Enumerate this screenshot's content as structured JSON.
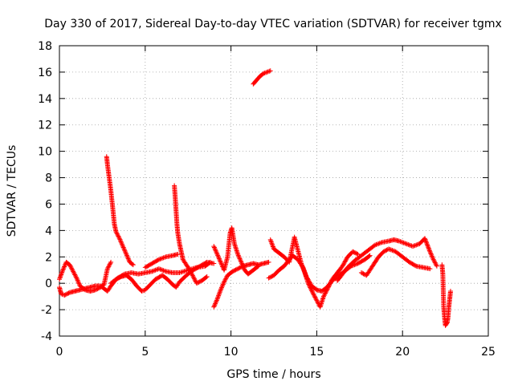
{
  "chart_data": {
    "type": "scatter",
    "title": "Day 330 of 2017, Sidereal Day-to-day VTEC variation (SDTVAR) for receiver tgmx",
    "xlabel": "GPS time / hours",
    "ylabel": "SDTVAR / TECUs",
    "xlim": [
      0,
      25
    ],
    "ylim": [
      -4,
      18
    ],
    "xticks": [
      0,
      5,
      10,
      15,
      20,
      25
    ],
    "yticks": [
      -4,
      -2,
      0,
      2,
      4,
      6,
      8,
      10,
      12,
      14,
      16,
      18
    ],
    "grid": true,
    "legend": "none",
    "marker": "+",
    "color": "#ff0000",
    "series": [
      {
        "name": "trace-a",
        "points": [
          [
            0.0,
            -0.3
          ],
          [
            0.1,
            -0.8
          ],
          [
            0.3,
            -0.9
          ],
          [
            0.6,
            -0.7
          ],
          [
            0.9,
            -0.6
          ],
          [
            1.2,
            -0.5
          ],
          [
            1.5,
            -0.4
          ],
          [
            1.8,
            -0.3
          ],
          [
            2.1,
            -0.2
          ],
          [
            2.4,
            -0.2
          ],
          [
            2.6,
            -0.4
          ],
          [
            2.8,
            -0.6
          ],
          [
            3.0,
            -0.2
          ],
          [
            3.3,
            0.3
          ],
          [
            3.6,
            0.5
          ],
          [
            3.9,
            0.6
          ],
          [
            4.2,
            0.3
          ],
          [
            4.5,
            -0.2
          ],
          [
            4.8,
            -0.6
          ],
          [
            5.0,
            -0.5
          ],
          [
            5.3,
            -0.1
          ],
          [
            5.6,
            0.3
          ],
          [
            6.0,
            0.6
          ],
          [
            6.3,
            0.3
          ],
          [
            6.6,
            -0.1
          ],
          [
            6.8,
            -0.3
          ],
          [
            7.0,
            0.1
          ],
          [
            7.4,
            0.6
          ],
          [
            7.8,
            1.0
          ],
          [
            8.2,
            1.3
          ],
          [
            8.6,
            1.6
          ],
          [
            9.0,
            1.5
          ]
        ]
      },
      {
        "name": "trace-b",
        "points": [
          [
            0.0,
            0.3
          ],
          [
            0.2,
            1.0
          ],
          [
            0.4,
            1.6
          ],
          [
            0.6,
            1.4
          ],
          [
            0.8,
            0.9
          ],
          [
            1.0,
            0.4
          ],
          [
            1.2,
            -0.2
          ],
          [
            1.5,
            -0.5
          ],
          [
            1.8,
            -0.6
          ],
          [
            2.1,
            -0.5
          ],
          [
            2.4,
            -0.3
          ],
          [
            2.6,
            -0.1
          ],
          [
            2.8,
            1.1
          ],
          [
            3.0,
            1.6
          ]
        ]
      },
      {
        "name": "trace-c",
        "points": [
          [
            2.75,
            9.6
          ],
          [
            2.8,
            9.0
          ],
          [
            2.9,
            8.0
          ],
          [
            3.0,
            7.0
          ],
          [
            3.1,
            5.8
          ],
          [
            3.2,
            4.5
          ],
          [
            3.3,
            3.9
          ],
          [
            3.5,
            3.4
          ],
          [
            3.7,
            2.8
          ],
          [
            3.9,
            2.2
          ],
          [
            4.1,
            1.6
          ],
          [
            4.3,
            1.4
          ]
        ]
      },
      {
        "name": "trace-d",
        "points": [
          [
            3.0,
            0.0
          ],
          [
            3.4,
            0.4
          ],
          [
            3.8,
            0.7
          ],
          [
            4.2,
            0.8
          ],
          [
            4.6,
            0.7
          ],
          [
            5.0,
            0.8
          ],
          [
            5.4,
            0.9
          ],
          [
            5.8,
            1.1
          ],
          [
            6.2,
            0.9
          ],
          [
            6.6,
            0.8
          ],
          [
            7.0,
            0.8
          ],
          [
            7.5,
            1.0
          ],
          [
            8.0,
            1.2
          ],
          [
            8.5,
            1.3
          ],
          [
            8.8,
            1.6
          ]
        ]
      },
      {
        "name": "trace-e",
        "points": [
          [
            6.7,
            7.4
          ],
          [
            6.75,
            6.5
          ],
          [
            6.8,
            5.5
          ],
          [
            6.85,
            4.5
          ],
          [
            6.9,
            3.8
          ],
          [
            7.0,
            3.0
          ],
          [
            7.1,
            2.4
          ],
          [
            7.2,
            1.8
          ],
          [
            7.4,
            1.4
          ],
          [
            7.6,
            1.0
          ],
          [
            7.8,
            0.5
          ],
          [
            8.0,
            0.0
          ],
          [
            8.3,
            0.2
          ],
          [
            8.6,
            0.5
          ]
        ]
      },
      {
        "name": "trace-f",
        "points": [
          [
            5.0,
            1.2
          ],
          [
            5.4,
            1.5
          ],
          [
            5.8,
            1.8
          ],
          [
            6.2,
            2.0
          ],
          [
            6.6,
            2.1
          ],
          [
            6.9,
            2.2
          ]
        ]
      },
      {
        "name": "trace-g",
        "points": [
          [
            9.0,
            -1.8
          ],
          [
            9.2,
            -1.2
          ],
          [
            9.4,
            -0.5
          ],
          [
            9.6,
            0.1
          ],
          [
            9.8,
            0.6
          ],
          [
            10.1,
            0.9
          ],
          [
            10.4,
            1.1
          ],
          [
            10.7,
            1.3
          ],
          [
            11.0,
            1.4
          ],
          [
            11.3,
            1.5
          ],
          [
            11.6,
            1.4
          ],
          [
            11.9,
            1.5
          ],
          [
            12.2,
            1.6
          ]
        ]
      },
      {
        "name": "trace-h",
        "points": [
          [
            9.0,
            2.8
          ],
          [
            9.2,
            2.2
          ],
          [
            9.4,
            1.6
          ],
          [
            9.6,
            1.0
          ],
          [
            9.8,
            2.0
          ],
          [
            9.95,
            3.8
          ],
          [
            10.05,
            4.2
          ],
          [
            10.2,
            3.0
          ],
          [
            10.4,
            2.2
          ],
          [
            10.6,
            1.6
          ],
          [
            10.8,
            1.0
          ],
          [
            11.0,
            0.7
          ],
          [
            11.3,
            1.0
          ],
          [
            11.6,
            1.3
          ]
        ]
      },
      {
        "name": "trace-i",
        "points": [
          [
            11.3,
            15.1
          ],
          [
            11.5,
            15.4
          ],
          [
            11.7,
            15.7
          ],
          [
            11.9,
            15.9
          ],
          [
            12.1,
            16.0
          ],
          [
            12.3,
            16.1
          ]
        ]
      },
      {
        "name": "trace-j",
        "points": [
          [
            12.3,
            3.3
          ],
          [
            12.5,
            2.6
          ],
          [
            12.8,
            2.3
          ],
          [
            13.1,
            2.0
          ],
          [
            13.4,
            1.6
          ],
          [
            13.7,
            3.5
          ],
          [
            13.9,
            2.5
          ],
          [
            14.1,
            1.5
          ],
          [
            14.3,
            0.8
          ],
          [
            14.5,
            0.0
          ],
          [
            14.8,
            -0.8
          ],
          [
            15.0,
            -1.3
          ],
          [
            15.2,
            -1.8
          ],
          [
            15.4,
            -1.0
          ],
          [
            15.6,
            -0.5
          ],
          [
            15.9,
            0.3
          ],
          [
            16.2,
            0.8
          ],
          [
            16.5,
            1.3
          ],
          [
            16.8,
            2.0
          ],
          [
            17.1,
            2.4
          ],
          [
            17.4,
            2.2
          ]
        ]
      },
      {
        "name": "trace-k",
        "points": [
          [
            12.2,
            0.4
          ],
          [
            12.5,
            0.6
          ],
          [
            12.8,
            1.0
          ],
          [
            13.1,
            1.3
          ],
          [
            13.4,
            1.8
          ],
          [
            13.6,
            2.1
          ],
          [
            13.9,
            1.8
          ],
          [
            14.2,
            1.2
          ],
          [
            14.4,
            0.5
          ],
          [
            14.7,
            -0.2
          ],
          [
            15.0,
            -0.5
          ],
          [
            15.3,
            -0.6
          ],
          [
            15.6,
            -0.3
          ],
          [
            15.9,
            0.2
          ],
          [
            16.3,
            0.6
          ],
          [
            16.7,
            1.0
          ],
          [
            17.0,
            1.3
          ],
          [
            17.4,
            1.5
          ],
          [
            17.8,
            1.8
          ],
          [
            18.1,
            2.1
          ]
        ]
      },
      {
        "name": "trace-l",
        "points": [
          [
            16.2,
            0.2
          ],
          [
            16.5,
            0.7
          ],
          [
            16.8,
            1.2
          ],
          [
            17.2,
            1.7
          ],
          [
            17.6,
            2.1
          ],
          [
            18.0,
            2.5
          ],
          [
            18.4,
            2.9
          ],
          [
            18.8,
            3.1
          ],
          [
            19.2,
            3.2
          ],
          [
            19.5,
            3.3
          ],
          [
            19.8,
            3.2
          ],
          [
            20.2,
            3.0
          ],
          [
            20.6,
            2.8
          ],
          [
            21.0,
            3.0
          ],
          [
            21.3,
            3.4
          ],
          [
            21.6,
            2.4
          ],
          [
            21.8,
            1.8
          ],
          [
            22.0,
            1.3
          ]
        ]
      },
      {
        "name": "trace-m",
        "points": [
          [
            17.6,
            0.8
          ],
          [
            17.9,
            0.6
          ],
          [
            18.1,
            1.0
          ],
          [
            18.3,
            1.4
          ],
          [
            18.6,
            2.0
          ],
          [
            18.9,
            2.4
          ],
          [
            19.2,
            2.6
          ],
          [
            19.6,
            2.4
          ],
          [
            20.0,
            2.0
          ],
          [
            20.4,
            1.6
          ],
          [
            20.8,
            1.3
          ],
          [
            21.2,
            1.2
          ],
          [
            21.6,
            1.1
          ]
        ]
      },
      {
        "name": "trace-n",
        "points": [
          [
            22.3,
            1.4
          ],
          [
            22.35,
            0.7
          ],
          [
            22.4,
            -1.8
          ],
          [
            22.45,
            -2.6
          ],
          [
            22.5,
            -3.2
          ],
          [
            22.6,
            -3.0
          ],
          [
            22.65,
            -2.6
          ],
          [
            22.7,
            -1.8
          ],
          [
            22.75,
            -1.2
          ],
          [
            22.8,
            -0.6
          ]
        ]
      }
    ]
  }
}
